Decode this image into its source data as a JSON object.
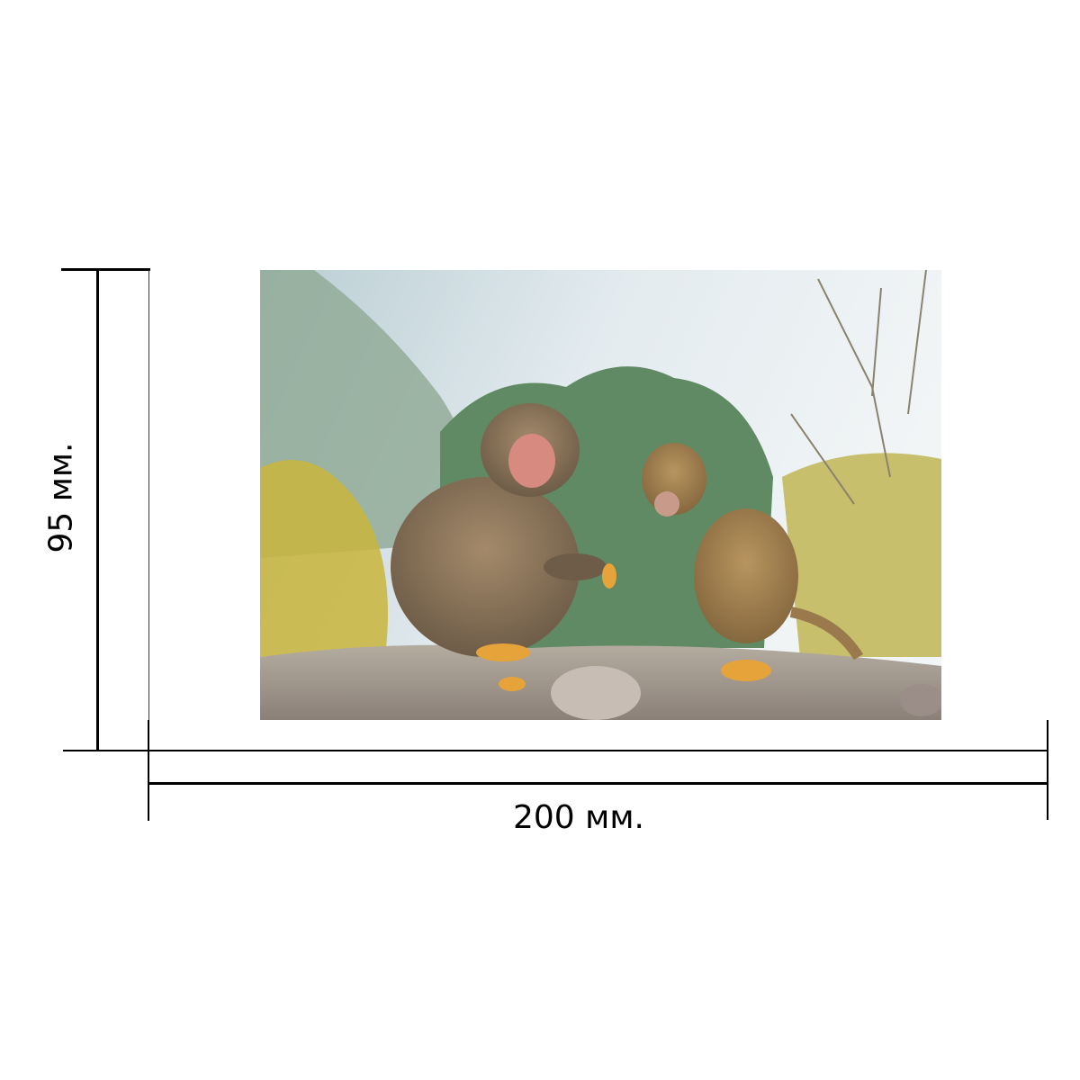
{
  "dimensions": {
    "width_label": "200 мм.",
    "height_label": "95 мм."
  },
  "photo": {
    "subject": "monkey-photo",
    "palette": {
      "sky": "#dfe8ee",
      "trees": "#5f8a63",
      "ground": "#a39a8f",
      "fur": "#8c7457",
      "leaves": "#d9c23a"
    }
  }
}
